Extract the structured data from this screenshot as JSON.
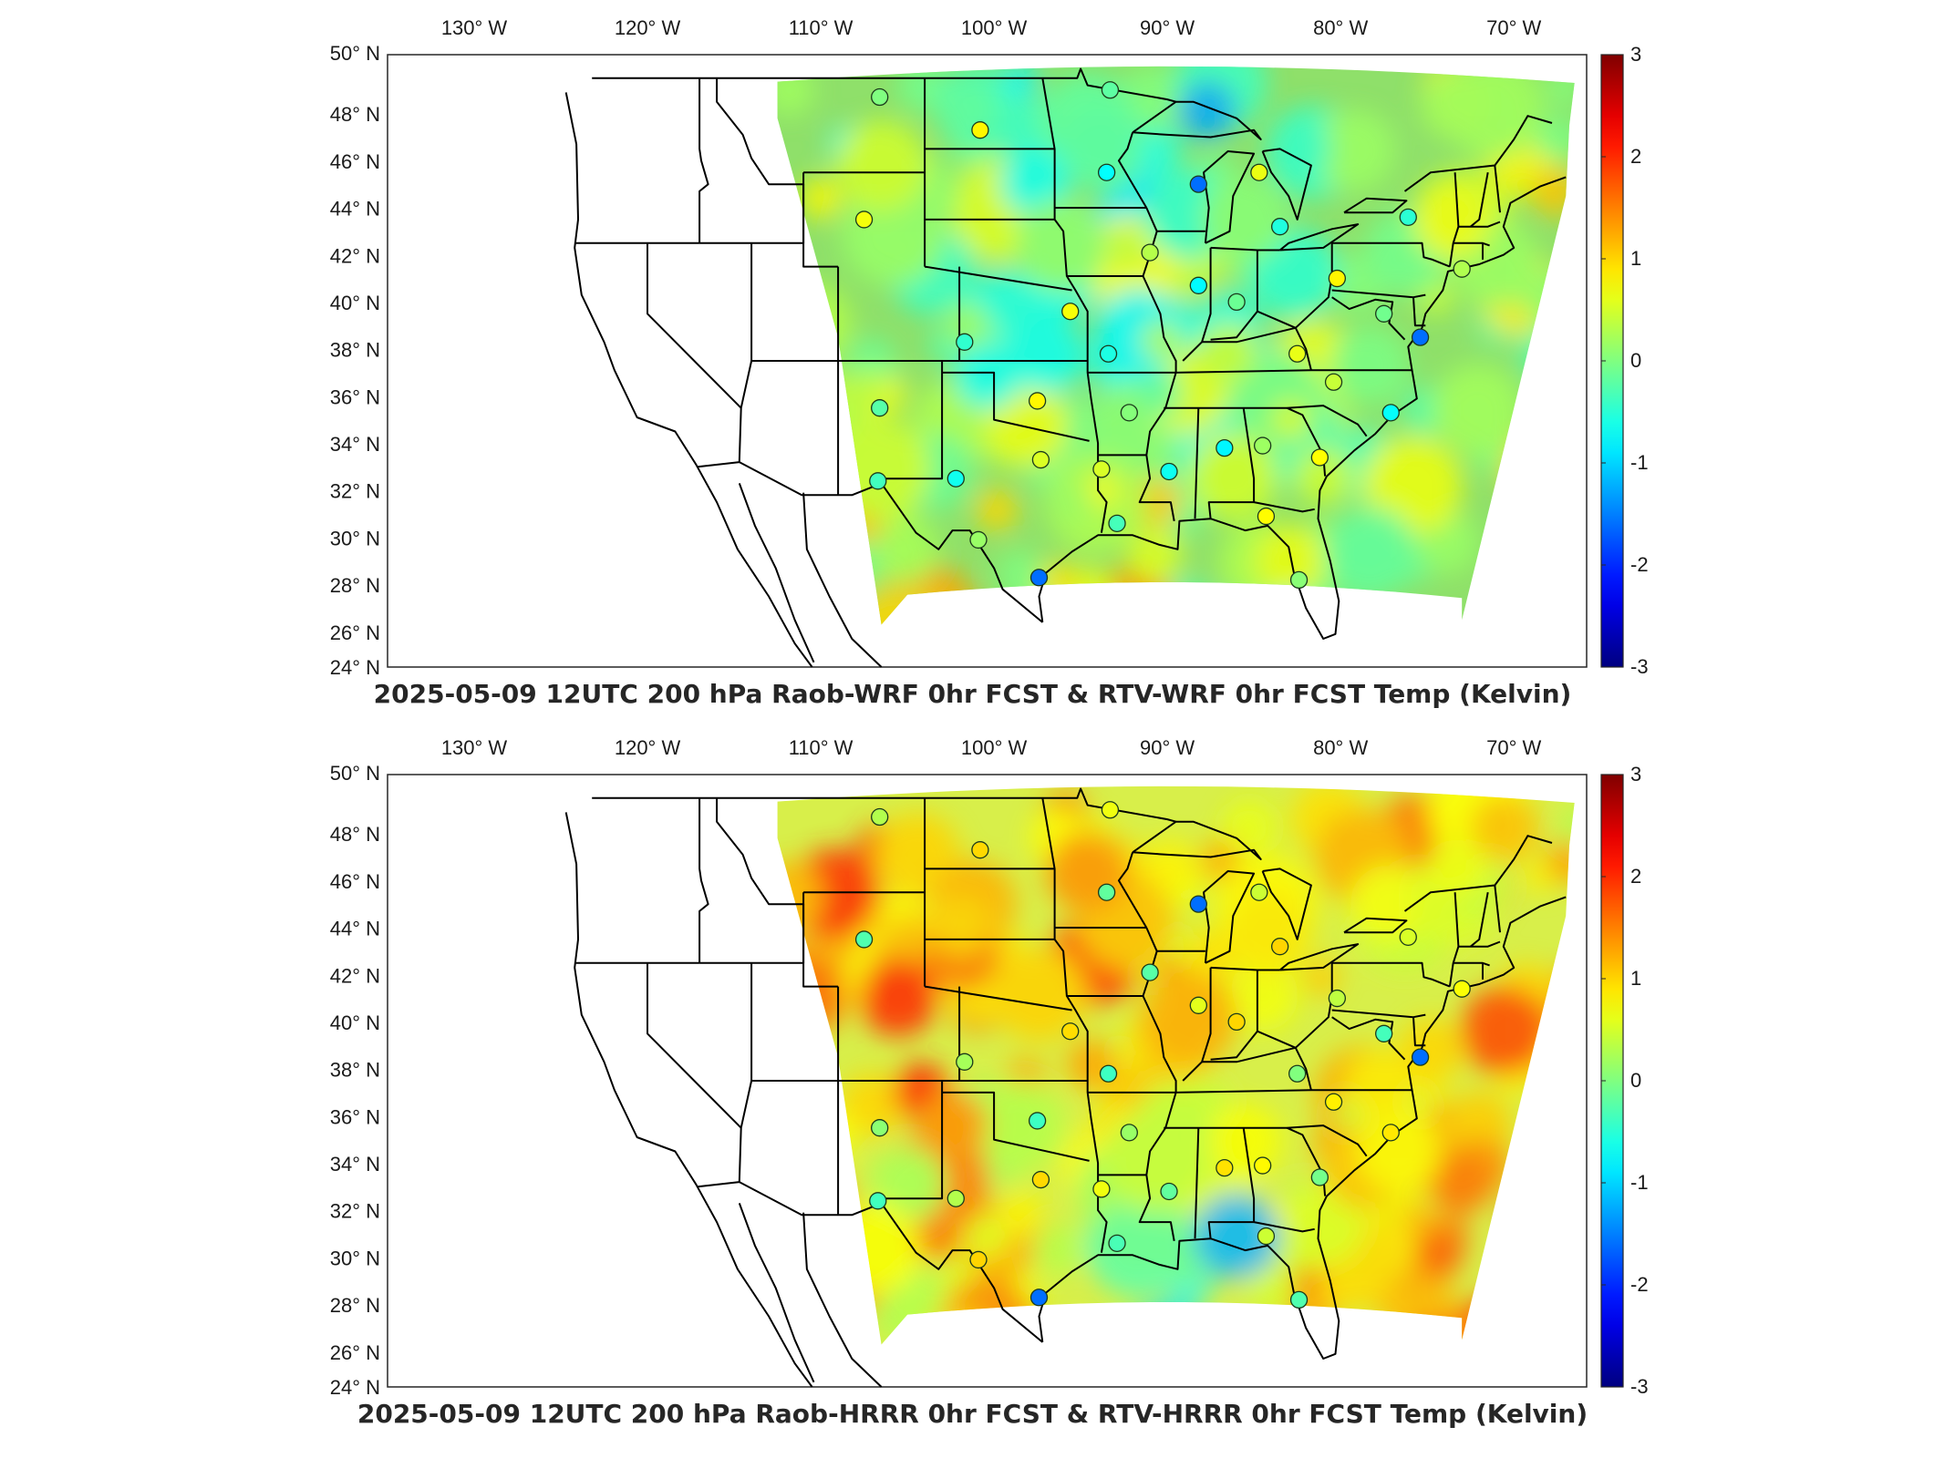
{
  "panels": [
    {
      "title": "2025-05-09 12UTC 200 hPa Raob-WRF 0hr FCST & RTV-WRF 0hr FCST Temp (Kelvin)",
      "field_base": "#8fe06a",
      "field_variant": "wrf"
    },
    {
      "title": "2025-05-09 12UTC 200 hPa Raob-HRRR 0hr FCST & RTV-HRRR 0hr FCST Temp (Kelvin)",
      "field_base": "#d8ef4a",
      "field_variant": "hrrr"
    }
  ],
  "longitude_labels": [
    "130° W",
    "120° W",
    "110° W",
    "100° W",
    "90° W",
    "80° W",
    "70° W"
  ],
  "latitude_labels": [
    "50° N",
    "48° N",
    "46° N",
    "44° N",
    "42° N",
    "40° N",
    "38° N",
    "36° N",
    "34° N",
    "32° N",
    "30° N",
    "28° N",
    "26° N",
    "24° N"
  ],
  "colorbar_ticks": [
    "3",
    "2",
    "1",
    "0",
    "-1",
    "-2",
    "-3"
  ],
  "colors": {
    "axis": "#262626",
    "state_lines": "#000000",
    "station_edge": "#1b3a1b"
  }
}
